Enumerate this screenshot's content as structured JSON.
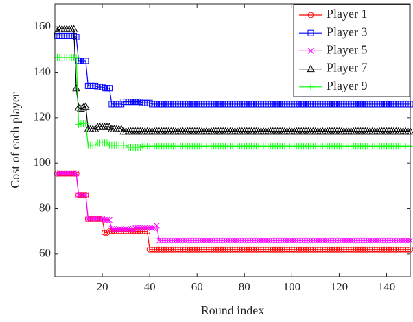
{
  "chart_data": {
    "type": "line",
    "x_label": "Round index",
    "y_label": "Cost of each player",
    "xlim": [
      0,
      150
    ],
    "ylim": [
      50,
      170
    ],
    "xticks": [
      20,
      40,
      60,
      80,
      100,
      120,
      140
    ],
    "yticks": [
      60,
      80,
      100,
      120,
      140,
      160
    ],
    "grid": false,
    "legend": "upper right",
    "x": [
      1,
      2,
      3,
      4,
      5,
      6,
      7,
      8,
      9,
      10,
      11,
      12,
      13,
      14,
      15,
      16,
      17,
      18,
      19,
      20,
      21,
      22,
      23,
      24,
      25,
      26,
      27,
      28,
      29,
      30,
      31,
      32,
      33,
      34,
      35,
      36,
      37,
      38,
      39,
      40,
      41,
      42,
      43,
      44,
      45,
      46,
      47,
      48,
      49,
      50,
      51,
      52,
      53,
      54,
      55,
      56,
      57,
      58,
      59,
      60,
      61,
      62,
      63,
      64,
      65,
      66,
      67,
      68,
      69,
      70,
      71,
      72,
      73,
      74,
      75,
      76,
      77,
      78,
      79,
      80,
      81,
      82,
      83,
      84,
      85,
      86,
      87,
      88,
      89,
      90,
      91,
      92,
      93,
      94,
      95,
      96,
      97,
      98,
      99,
      100,
      101,
      102,
      103,
      104,
      105,
      106,
      107,
      108,
      109,
      110,
      111,
      112,
      113,
      114,
      115,
      116,
      117,
      118,
      119,
      120,
      121,
      122,
      123,
      124,
      125,
      126,
      127,
      128,
      129,
      130,
      131,
      132,
      133,
      134,
      135,
      136,
      137,
      138,
      139,
      140,
      141,
      142,
      143,
      144,
      145,
      146,
      147,
      148,
      149,
      150
    ],
    "series": [
      {
        "name": "Player 1",
        "color": "#ff0000",
        "marker": "circle",
        "values": [
          95.5,
          95.5,
          95.5,
          95.5,
          95.5,
          95.5,
          95.5,
          95.5,
          95.5,
          86,
          86,
          86,
          86,
          75.5,
          75.5,
          75.5,
          75.5,
          75.5,
          75.5,
          75.5,
          69.5,
          69.5,
          70,
          70,
          70,
          70,
          70,
          70,
          70,
          70,
          70,
          70,
          70,
          70,
          70,
          70,
          70,
          70,
          70,
          62,
          62,
          62,
          62,
          62,
          62,
          62,
          62,
          62,
          62,
          62,
          62,
          62,
          62,
          62,
          62,
          62,
          62,
          62,
          62,
          62,
          62,
          62,
          62,
          62,
          62,
          62,
          62,
          62,
          62,
          62,
          62,
          62,
          62,
          62,
          62,
          62,
          62,
          62,
          62,
          62,
          62,
          62,
          62,
          62,
          62,
          62,
          62,
          62,
          62,
          62,
          62,
          62,
          62,
          62,
          62,
          62,
          62,
          62,
          62,
          62,
          62,
          62,
          62,
          62,
          62,
          62,
          62,
          62,
          62,
          62,
          62,
          62,
          62,
          62,
          62,
          62,
          62,
          62,
          62,
          62,
          62,
          62,
          62,
          62,
          62,
          62,
          62,
          62,
          62,
          62,
          62,
          62,
          62,
          62,
          62,
          62,
          62,
          62,
          62,
          62,
          62,
          62,
          62,
          62,
          62,
          62,
          62,
          62,
          62,
          62
        ]
      },
      {
        "name": "Player 3",
        "color": "#0000ff",
        "marker": "square",
        "values": [
          156,
          156,
          156,
          156,
          156,
          156,
          156,
          156,
          155.5,
          145,
          145,
          145,
          145,
          134,
          134,
          134,
          134,
          133.5,
          133.5,
          133.5,
          133,
          133,
          133,
          126,
          126,
          126,
          126,
          126,
          127,
          127,
          127,
          127,
          127,
          127,
          127,
          127,
          126.5,
          126.5,
          126.5,
          126.5,
          126,
          126,
          126,
          126,
          126,
          126,
          126,
          126,
          126,
          126,
          126,
          126,
          126,
          126,
          126,
          126,
          126,
          126,
          126,
          126,
          126,
          126,
          126,
          126,
          126,
          126,
          126,
          126,
          126,
          126,
          126,
          126,
          126,
          126,
          126,
          126,
          126,
          126,
          126,
          126,
          126,
          126,
          126,
          126,
          126,
          126,
          126,
          126,
          126,
          126,
          126,
          126,
          126,
          126,
          126,
          126,
          126,
          126,
          126,
          126,
          126,
          126,
          126,
          126,
          126,
          126,
          126,
          126,
          126,
          126,
          126,
          126,
          126,
          126,
          126,
          126,
          126,
          126,
          126,
          126,
          126,
          126,
          126,
          126,
          126,
          126,
          126,
          126,
          126,
          126,
          126,
          126,
          126,
          126,
          126,
          126,
          126,
          126,
          126,
          126,
          126,
          126,
          126,
          126,
          126,
          126,
          126,
          126,
          126,
          126
        ]
      },
      {
        "name": "Player 5",
        "color": "#ff00ff",
        "marker": "x",
        "values": [
          95.5,
          95.5,
          95.5,
          95.5,
          95.5,
          95.5,
          95.5,
          95.5,
          95.5,
          86,
          86,
          86,
          86,
          75.5,
          75.5,
          75.5,
          75.5,
          75.5,
          75.5,
          75.5,
          75,
          75,
          75,
          71,
          71,
          71,
          71,
          71,
          71,
          71,
          71,
          71,
          71,
          71.5,
          71.5,
          71.5,
          71.5,
          71.5,
          71.5,
          71.5,
          71.5,
          71.5,
          72.5,
          66,
          66,
          66,
          66,
          66,
          66,
          66,
          66,
          66,
          66,
          66,
          66,
          66,
          66,
          66,
          66,
          66,
          66,
          66,
          66,
          66,
          66,
          66,
          66,
          66,
          66,
          66,
          66,
          66,
          66,
          66,
          66,
          66,
          66,
          66,
          66,
          66,
          66,
          66,
          66,
          66,
          66,
          66,
          66,
          66,
          66,
          66,
          66,
          66,
          66,
          66,
          66,
          66,
          66,
          66,
          66,
          66,
          66,
          66,
          66,
          66,
          66,
          66,
          66,
          66,
          66,
          66,
          66,
          66,
          66,
          66,
          66,
          66,
          66,
          66,
          66,
          66,
          66,
          66,
          66,
          66,
          66,
          66,
          66,
          66,
          66,
          66,
          66,
          66,
          66,
          66,
          66,
          66,
          66,
          66,
          66,
          66,
          66,
          66,
          66,
          66,
          66,
          66,
          66,
          66,
          66,
          66
        ]
      },
      {
        "name": "Player 7",
        "color": "#000000",
        "marker": "triangle",
        "values": [
          158,
          159,
          159,
          159,
          159,
          159,
          159,
          159,
          133,
          124.5,
          124,
          124.5,
          125,
          115,
          115,
          115,
          115,
          116,
          116,
          116,
          116,
          116,
          116,
          115,
          115,
          115,
          115,
          115,
          114,
          114,
          114,
          114,
          114,
          114,
          114,
          114,
          114,
          114,
          114,
          114,
          114,
          114,
          114,
          114,
          114,
          114,
          114,
          114,
          114,
          114,
          114,
          114,
          114,
          114,
          114,
          114,
          114,
          114,
          114,
          114,
          114,
          114,
          114,
          114,
          114,
          114,
          114,
          114,
          114,
          114,
          114,
          114,
          114,
          114,
          114,
          114,
          114,
          114,
          114,
          114,
          114,
          114,
          114,
          114,
          114,
          114,
          114,
          114,
          114,
          114,
          114,
          114,
          114,
          114,
          114,
          114,
          114,
          114,
          114,
          114,
          114,
          114,
          114,
          114,
          114,
          114,
          114,
          114,
          114,
          114,
          114,
          114,
          114,
          114,
          114,
          114,
          114,
          114,
          114,
          114,
          114,
          114,
          114,
          114,
          114,
          114,
          114,
          114,
          114,
          114,
          114,
          114,
          114,
          114,
          114,
          114,
          114,
          114,
          114,
          114,
          114,
          114,
          114,
          114,
          114,
          114,
          114,
          114,
          114,
          114
        ]
      },
      {
        "name": "Player 9",
        "color": "#00ff00",
        "marker": "plus",
        "values": [
          146.5,
          146.5,
          146.5,
          146.5,
          146.5,
          146.5,
          146.5,
          146.5,
          146.5,
          117,
          117.5,
          117.5,
          117.5,
          108,
          108,
          108,
          108,
          109,
          109,
          109,
          109,
          109,
          108,
          108,
          108,
          108,
          108,
          108,
          108,
          108,
          107,
          107,
          107,
          107,
          107,
          107,
          107.5,
          107.5,
          107.5,
          107.5,
          107.5,
          107.5,
          107.5,
          107.5,
          107.5,
          107.5,
          107.5,
          107.5,
          107.5,
          107.5,
          107.5,
          107.5,
          107.5,
          107.5,
          107.5,
          107.5,
          107.5,
          107.5,
          107.5,
          107.5,
          107.5,
          107.5,
          107.5,
          107.5,
          107.5,
          107.5,
          107.5,
          107.5,
          107.5,
          107.5,
          107.5,
          107.5,
          107.5,
          107.5,
          107.5,
          107.5,
          107.5,
          107.5,
          107.5,
          107.5,
          107.5,
          107.5,
          107.5,
          107.5,
          107.5,
          107.5,
          107.5,
          107.5,
          107.5,
          107.5,
          107.5,
          107.5,
          107.5,
          107.5,
          107.5,
          107.5,
          107.5,
          107.5,
          107.5,
          107.5,
          107.5,
          107.5,
          107.5,
          107.5,
          107.5,
          107.5,
          107.5,
          107.5,
          107.5,
          107.5,
          107.5,
          107.5,
          107.5,
          107.5,
          107.5,
          107.5,
          107.5,
          107.5,
          107.5,
          107.5,
          107.5,
          107.5,
          107.5,
          107.5,
          107.5,
          107.5,
          107.5,
          107.5,
          107.5,
          107.5,
          107.5,
          107.5,
          107.5,
          107.5,
          107.5,
          107.5,
          107.5,
          107.5,
          107.5,
          107.5,
          107.5,
          107.5,
          107.5,
          107.5,
          107.5,
          107.5,
          107.5,
          107.5,
          107.5,
          107.5
        ]
      }
    ]
  }
}
